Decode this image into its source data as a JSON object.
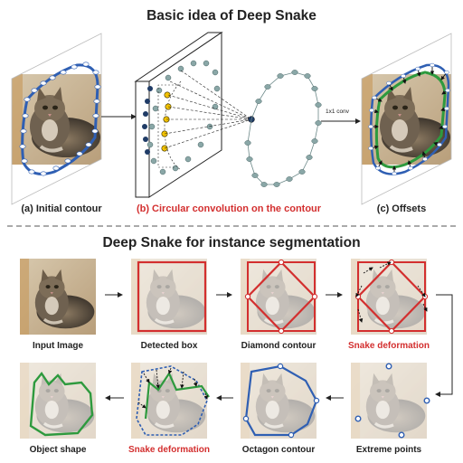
{
  "top": {
    "title": "Basic idea of Deep Snake",
    "caption_a": "(a) Initial contour",
    "caption_b": "(b) Circular convolution on the contour",
    "caption_c": "(c) Offsets",
    "conv_label": "1x1 conv"
  },
  "bottom": {
    "title": "Deep Snake for instance segmentation",
    "panels": [
      {
        "label": "Input Image",
        "highlight": false
      },
      {
        "label": "Detected box",
        "highlight": false
      },
      {
        "label": "Diamond contour",
        "highlight": false
      },
      {
        "label": "Snake deformation",
        "highlight": true
      },
      {
        "label": "Extreme points",
        "highlight": false
      },
      {
        "label": "Octagon contour",
        "highlight": false
      },
      {
        "label": "Snake deformation",
        "highlight": true
      },
      {
        "label": "Object shape",
        "highlight": false
      }
    ]
  },
  "colors": {
    "contour_blue": "#2f5fb3",
    "box_red": "#d32f2f",
    "shape_green": "#2e9a3e",
    "highlight_text": "#d32f2f",
    "node_gray": "#8aa7a7",
    "node_yellow": "#f2c200",
    "node_navy": "#1f3b66"
  }
}
